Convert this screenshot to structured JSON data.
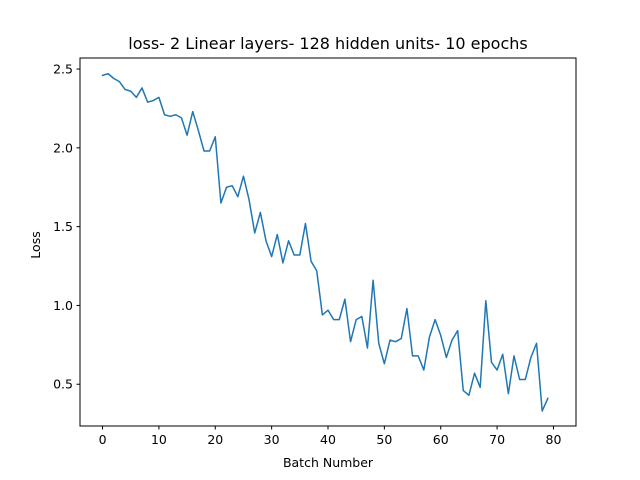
{
  "chart_data": {
    "type": "line",
    "title": "loss- 2 Linear layers- 128 hidden units- 10 epochs",
    "xlabel": "Batch Number",
    "ylabel": "Loss",
    "xlim": [
      -4,
      84
    ],
    "ylim": [
      0.235,
      2.57
    ],
    "xticks": [
      0,
      10,
      20,
      30,
      40,
      50,
      60,
      70,
      80
    ],
    "yticks": [
      0.5,
      1.0,
      1.5,
      2.0,
      2.5
    ],
    "ytick_labels": [
      "0.5",
      "1.0",
      "1.5",
      "2.0",
      "2.5"
    ],
    "grid": false,
    "series": [
      {
        "color": "#1f77b4",
        "x": [
          0,
          1,
          2,
          3,
          4,
          5,
          6,
          7,
          8,
          9,
          10,
          11,
          12,
          13,
          14,
          15,
          16,
          17,
          18,
          19,
          20,
          21,
          22,
          23,
          24,
          25,
          26,
          27,
          28,
          29,
          30,
          31,
          32,
          33,
          34,
          35,
          36,
          37,
          38,
          39,
          40,
          41,
          42,
          43,
          44,
          45,
          46,
          47,
          48,
          49,
          50,
          51,
          52,
          53,
          54,
          55,
          56,
          57,
          58,
          59,
          60,
          61,
          62,
          63,
          64,
          65,
          66,
          67,
          68,
          69,
          70,
          71,
          72,
          73,
          74,
          75,
          76,
          77,
          78,
          79
        ],
        "y": [
          2.46,
          2.47,
          2.44,
          2.42,
          2.37,
          2.36,
          2.32,
          2.38,
          2.29,
          2.3,
          2.32,
          2.21,
          2.2,
          2.21,
          2.19,
          2.08,
          2.23,
          2.11,
          1.98,
          1.98,
          2.07,
          1.65,
          1.75,
          1.76,
          1.69,
          1.82,
          1.67,
          1.46,
          1.59,
          1.41,
          1.31,
          1.45,
          1.27,
          1.41,
          1.32,
          1.32,
          1.52,
          1.28,
          1.22,
          0.94,
          0.97,
          0.91,
          0.91,
          1.04,
          0.77,
          0.91,
          0.93,
          0.73,
          1.16,
          0.76,
          0.63,
          0.78,
          0.77,
          0.79,
          0.98,
          0.68,
          0.68,
          0.59,
          0.8,
          0.91,
          0.81,
          0.67,
          0.78,
          0.84,
          0.46,
          0.43,
          0.57,
          0.48,
          1.03,
          0.64,
          0.59,
          0.69,
          0.44,
          0.68,
          0.53,
          0.53,
          0.67,
          0.76,
          0.33,
          0.41
        ]
      }
    ]
  }
}
